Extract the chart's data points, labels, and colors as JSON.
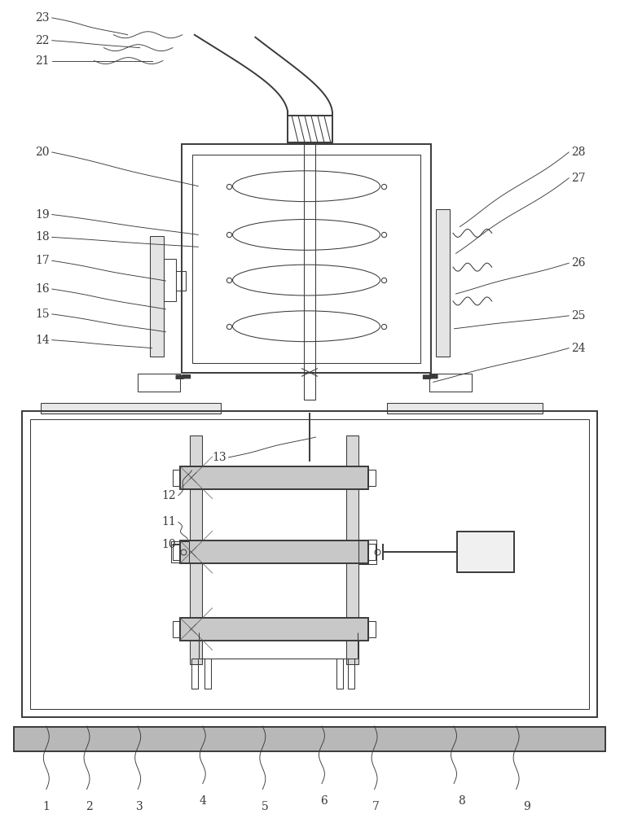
{
  "bg_color": "#ffffff",
  "line_color": "#3a3a3a",
  "lw_main": 1.4,
  "lw_thin": 0.75,
  "lw_leader": 0.65,
  "font_size": 10.0,
  "fig_width": 7.61,
  "fig_height": 10.0
}
